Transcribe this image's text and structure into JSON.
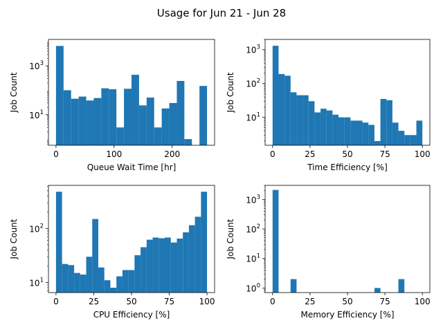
{
  "figure": {
    "title": "Usage for Jun 21 - Jun 28"
  },
  "colors": {
    "bar": "#1f77b4",
    "axis": "#000000",
    "background": "#ffffff"
  },
  "chart_data": [
    {
      "id": "queue",
      "type": "bar",
      "title": "",
      "xlabel": "Queue Wait Time [hr]",
      "ylabel": "Job Count",
      "yscale": "log",
      "grid": false,
      "xlim": [
        -13,
        273
      ],
      "ylim": [
        0.56,
        12000
      ],
      "xticks": [
        0,
        100,
        200
      ],
      "yticks": [
        {
          "value": 10,
          "label": "10^1"
        },
        {
          "value": 1000,
          "label": "10^3"
        }
      ],
      "bins": [
        {
          "x0": 0,
          "x1": 13,
          "count": 6500
        },
        {
          "x0": 13,
          "x1": 26,
          "count": 100
        },
        {
          "x0": 26,
          "x1": 39,
          "count": 45
        },
        {
          "x0": 39,
          "x1": 52,
          "count": 55
        },
        {
          "x0": 52,
          "x1": 65,
          "count": 38
        },
        {
          "x0": 65,
          "x1": 78,
          "count": 48
        },
        {
          "x0": 78,
          "x1": 91,
          "count": 120
        },
        {
          "x0": 91,
          "x1": 104,
          "count": 110
        },
        {
          "x0": 104,
          "x1": 117,
          "count": 3
        },
        {
          "x0": 117,
          "x1": 130,
          "count": 115
        },
        {
          "x0": 130,
          "x1": 143,
          "count": 430
        },
        {
          "x0": 143,
          "x1": 156,
          "count": 24
        },
        {
          "x0": 156,
          "x1": 169,
          "count": 50
        },
        {
          "x0": 169,
          "x1": 182,
          "count": 3
        },
        {
          "x0": 182,
          "x1": 195,
          "count": 18
        },
        {
          "x0": 195,
          "x1": 208,
          "count": 30
        },
        {
          "x0": 208,
          "x1": 221,
          "count": 240
        },
        {
          "x0": 221,
          "x1": 234,
          "count": 1
        },
        {
          "x0": 247,
          "x1": 260,
          "count": 150
        }
      ]
    },
    {
      "id": "time",
      "type": "bar",
      "title": "",
      "xlabel": "Time Efficiency [%]",
      "ylabel": "Job Count",
      "yscale": "log",
      "grid": false,
      "xlim": [
        -5,
        105
      ],
      "ylim": [
        1.5,
        2000
      ],
      "xticks": [
        0,
        25,
        50,
        75,
        100
      ],
      "yticks": [
        {
          "value": 10,
          "label": "10^1"
        },
        {
          "value": 100,
          "label": "10^2"
        },
        {
          "value": 1000,
          "label": "10^3"
        }
      ],
      "bins": [
        {
          "x0": 0,
          "x1": 4,
          "count": 1300
        },
        {
          "x0": 4,
          "x1": 8,
          "count": 190
        },
        {
          "x0": 8,
          "x1": 12,
          "count": 170
        },
        {
          "x0": 12,
          "x1": 16,
          "count": 55
        },
        {
          "x0": 16,
          "x1": 20,
          "count": 45
        },
        {
          "x0": 20,
          "x1": 24,
          "count": 45
        },
        {
          "x0": 24,
          "x1": 28,
          "count": 30
        },
        {
          "x0": 28,
          "x1": 32,
          "count": 14
        },
        {
          "x0": 32,
          "x1": 36,
          "count": 18
        },
        {
          "x0": 36,
          "x1": 40,
          "count": 16
        },
        {
          "x0": 40,
          "x1": 44,
          "count": 12
        },
        {
          "x0": 44,
          "x1": 48,
          "count": 10
        },
        {
          "x0": 48,
          "x1": 52,
          "count": 10
        },
        {
          "x0": 52,
          "x1": 56,
          "count": 8
        },
        {
          "x0": 56,
          "x1": 60,
          "count": 8
        },
        {
          "x0": 60,
          "x1": 64,
          "count": 7
        },
        {
          "x0": 64,
          "x1": 68,
          "count": 6
        },
        {
          "x0": 68,
          "x1": 72,
          "count": 2
        },
        {
          "x0": 72,
          "x1": 76,
          "count": 35
        },
        {
          "x0": 76,
          "x1": 80,
          "count": 32
        },
        {
          "x0": 80,
          "x1": 84,
          "count": 7
        },
        {
          "x0": 84,
          "x1": 88,
          "count": 4
        },
        {
          "x0": 88,
          "x1": 92,
          "count": 3
        },
        {
          "x0": 92,
          "x1": 96,
          "count": 3
        },
        {
          "x0": 96,
          "x1": 100,
          "count": 8
        }
      ]
    },
    {
      "id": "cpu",
      "type": "bar",
      "title": "",
      "xlabel": "CPU Efficiency [%]",
      "ylabel": "Job Count",
      "yscale": "log",
      "grid": false,
      "xlim": [
        -5,
        105
      ],
      "ylim": [
        6.5,
        630
      ],
      "xticks": [
        0,
        25,
        50,
        75,
        100
      ],
      "yticks": [
        {
          "value": 10,
          "label": "10^1"
        },
        {
          "value": 100,
          "label": "10^2"
        }
      ],
      "bins": [
        {
          "x0": 0,
          "x1": 4,
          "count": 480
        },
        {
          "x0": 4,
          "x1": 8,
          "count": 22
        },
        {
          "x0": 8,
          "x1": 12,
          "count": 21
        },
        {
          "x0": 12,
          "x1": 16,
          "count": 15
        },
        {
          "x0": 16,
          "x1": 20,
          "count": 14
        },
        {
          "x0": 20,
          "x1": 24,
          "count": 30
        },
        {
          "x0": 24,
          "x1": 28,
          "count": 150
        },
        {
          "x0": 28,
          "x1": 32,
          "count": 19
        },
        {
          "x0": 32,
          "x1": 36,
          "count": 11
        },
        {
          "x0": 36,
          "x1": 40,
          "count": 8
        },
        {
          "x0": 40,
          "x1": 44,
          "count": 13
        },
        {
          "x0": 44,
          "x1": 48,
          "count": 17
        },
        {
          "x0": 48,
          "x1": 52,
          "count": 17
        },
        {
          "x0": 52,
          "x1": 56,
          "count": 32
        },
        {
          "x0": 56,
          "x1": 60,
          "count": 45
        },
        {
          "x0": 60,
          "x1": 64,
          "count": 62
        },
        {
          "x0": 64,
          "x1": 68,
          "count": 68
        },
        {
          "x0": 68,
          "x1": 72,
          "count": 66
        },
        {
          "x0": 72,
          "x1": 76,
          "count": 68
        },
        {
          "x0": 76,
          "x1": 80,
          "count": 55
        },
        {
          "x0": 80,
          "x1": 84,
          "count": 65
        },
        {
          "x0": 84,
          "x1": 88,
          "count": 85
        },
        {
          "x0": 88,
          "x1": 92,
          "count": 115
        },
        {
          "x0": 92,
          "x1": 96,
          "count": 165
        },
        {
          "x0": 96,
          "x1": 100,
          "count": 480
        }
      ]
    },
    {
      "id": "memory",
      "type": "bar",
      "title": "",
      "xlabel": "Memory Efficiency [%]",
      "ylabel": "Job Count",
      "yscale": "log",
      "grid": false,
      "xlim": [
        -5,
        105
      ],
      "ylim": [
        0.7,
        3000
      ],
      "xticks": [
        0,
        25,
        50,
        75,
        100
      ],
      "yticks": [
        {
          "value": 1,
          "label": "10^0"
        },
        {
          "value": 10,
          "label": "10^1"
        },
        {
          "value": 100,
          "label": "10^2"
        },
        {
          "value": 1000,
          "label": "10^3"
        }
      ],
      "bins": [
        {
          "x0": 0,
          "x1": 4,
          "count": 2100
        },
        {
          "x0": 12,
          "x1": 16,
          "count": 2
        },
        {
          "x0": 68,
          "x1": 72,
          "count": 1
        },
        {
          "x0": 84,
          "x1": 88,
          "count": 2
        }
      ]
    }
  ]
}
